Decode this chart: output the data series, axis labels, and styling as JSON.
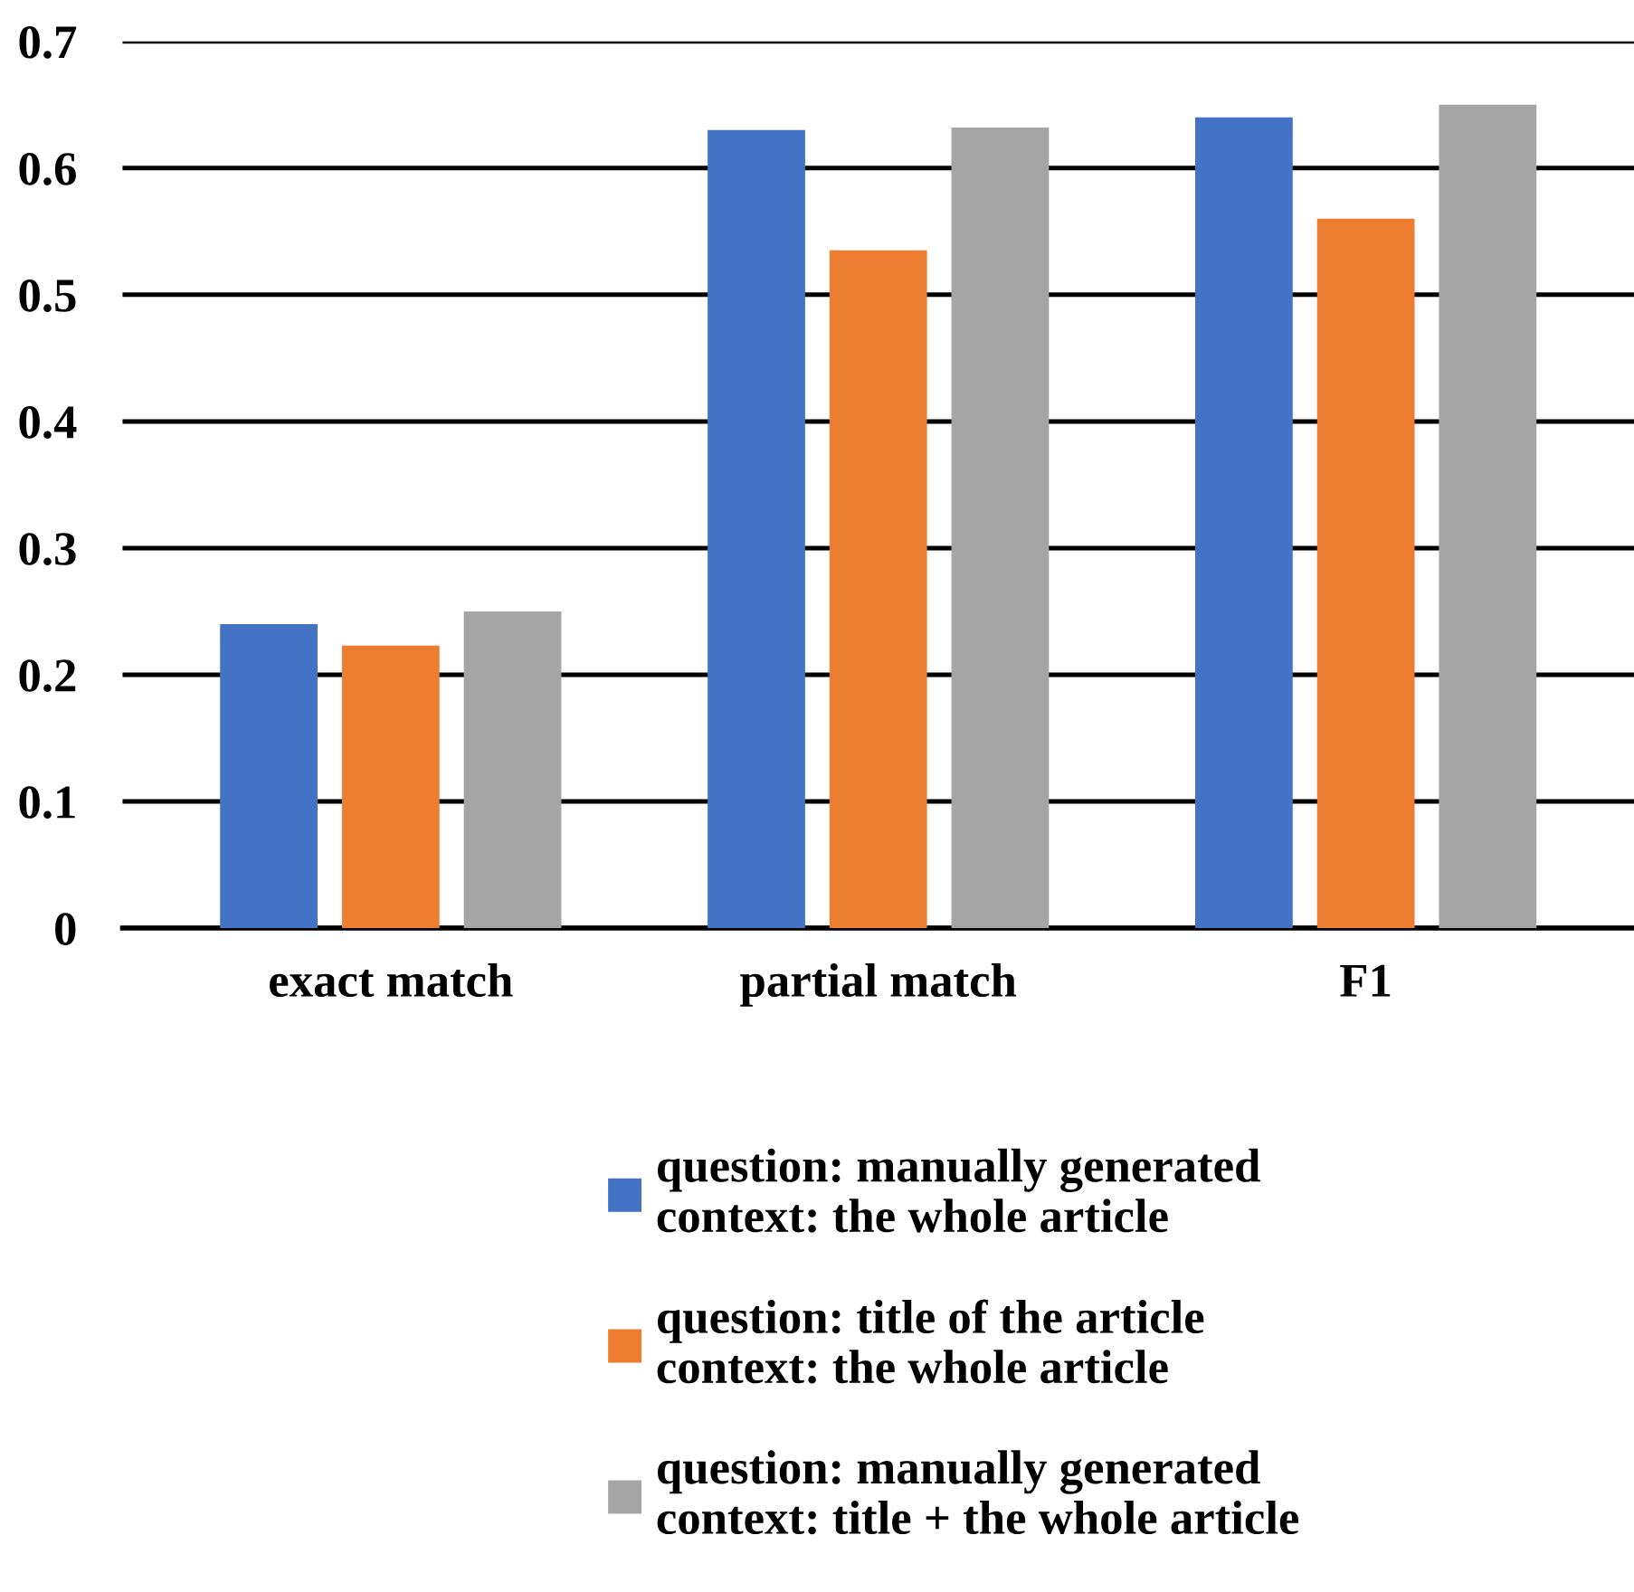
{
  "chart_data": {
    "type": "bar",
    "categories": [
      "exact match",
      "partial match",
      "F1"
    ],
    "series": [
      {
        "name": "question: manually generated\ncontext: the whole article",
        "color": "#4472c4",
        "values": [
          0.24,
          0.63,
          0.64
        ]
      },
      {
        "name": "question: title of the article\ncontext: the whole article",
        "color": "#ed7d31",
        "values": [
          0.223,
          0.535,
          0.56
        ]
      },
      {
        "name": "question: manually generated\ncontext: title + the whole article",
        "color": "#a5a5a5",
        "values": [
          0.25,
          0.632,
          0.65
        ]
      }
    ],
    "ylim": [
      0,
      0.7
    ],
    "yticks": [
      0,
      0.1,
      0.2,
      0.3,
      0.4,
      0.5,
      0.6,
      0.7
    ],
    "grid": "y",
    "legend": "bottom"
  }
}
